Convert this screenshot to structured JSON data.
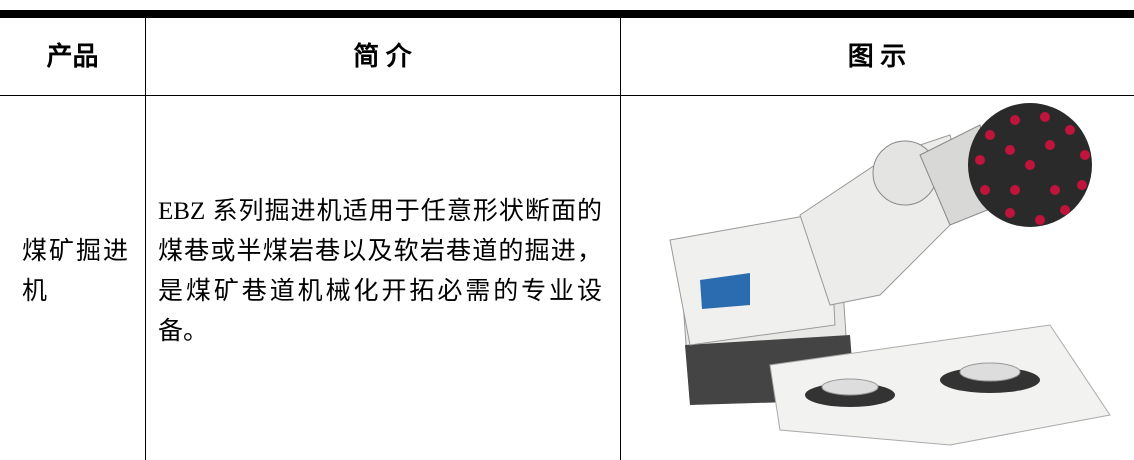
{
  "table": {
    "headers": [
      "产品",
      "简 介",
      "图 示"
    ],
    "rows": [
      [
        "煤矿掘进机",
        "EBZ 系列掘进机适用于任意形状断面的煤巷或半煤岩巷以及软岩巷道的掘进，是煤矿巷道机械化开拓必需的专业设备。"
      ]
    ]
  }
}
